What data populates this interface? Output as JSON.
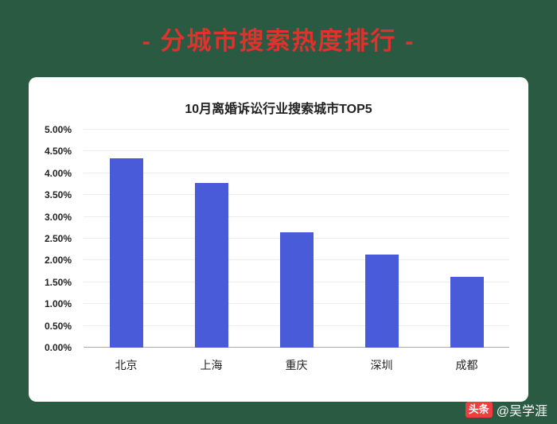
{
  "page": {
    "background_color": "#2A5A42",
    "title": "- 分城市搜索热度排行 -",
    "title_color": "#E0312D"
  },
  "chart_data": {
    "type": "bar",
    "title": "10月离婚诉讼行业搜索城市TOP5",
    "categories": [
      "北京",
      "上海",
      "重庆",
      "深圳",
      "成都"
    ],
    "values": [
      4.35,
      3.78,
      2.65,
      2.13,
      1.62
    ],
    "unit": "%",
    "ylim": [
      0,
      5
    ],
    "ytick_step": 0.5,
    "ytick_labels": [
      "0.00%",
      "0.50%",
      "1.00%",
      "1.50%",
      "2.00%",
      "2.50%",
      "3.00%",
      "3.50%",
      "4.00%",
      "4.50%",
      "5.00%"
    ],
    "bar_color": "#4A5BD9",
    "grid": true,
    "legend": "none"
  },
  "watermark": {
    "logo_text": "头条",
    "logo_color": "#EE3F3F",
    "handle": "@吴学涯"
  }
}
